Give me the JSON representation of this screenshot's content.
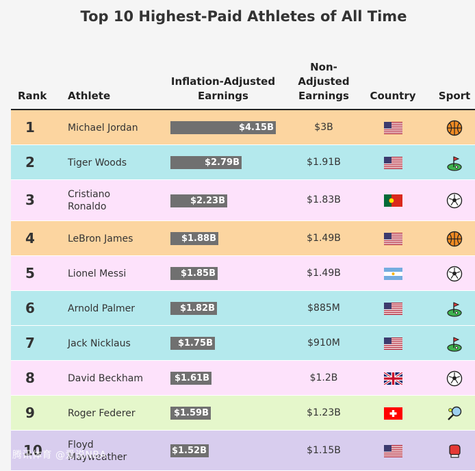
{
  "title": "Top 10 Highest-Paid Athletes of All Time",
  "headers": {
    "rank": "Rank",
    "athlete": "Athlete",
    "earnings_line1": "Inflation-Adjusted",
    "earnings_line2": "Earnings",
    "nonadj_line1": "Non-",
    "nonadj_line2": "Adjusted",
    "nonadj_line3": "Earnings",
    "country": "Country",
    "sport": "Sport"
  },
  "colors": {
    "basketball_row": "#fcd5a0",
    "golf_row": "#b4e9ed",
    "soccer_row": "#fde2fb",
    "tennis_row": "#e5f7cb",
    "boxing_row": "#d8cdee",
    "bar": "#707070"
  },
  "chart_data": {
    "type": "table",
    "unit": "$B",
    "x_max": 4.15,
    "rows": [
      {
        "rank": "1",
        "athlete": "Michael Jordan",
        "value": 4.15,
        "label": "$4.15B",
        "nonadj": "$3B",
        "country": "USA",
        "sport": "basketball"
      },
      {
        "rank": "2",
        "athlete": "Tiger Woods",
        "value": 2.79,
        "label": "$2.79B",
        "nonadj": "$1.91B",
        "country": "USA",
        "sport": "golf"
      },
      {
        "rank": "3",
        "athlete": "Cristiano Ronaldo",
        "value": 2.23,
        "label": "$2.23B",
        "nonadj": "$1.83B",
        "country": "Portugal",
        "sport": "soccer"
      },
      {
        "rank": "4",
        "athlete": "LeBron James",
        "value": 1.88,
        "label": "$1.88B",
        "nonadj": "$1.49B",
        "country": "USA",
        "sport": "basketball"
      },
      {
        "rank": "5",
        "athlete": "Lionel Messi",
        "value": 1.85,
        "label": "$1.85B",
        "nonadj": "$1.49B",
        "country": "Argentina",
        "sport": "soccer"
      },
      {
        "rank": "6",
        "athlete": "Arnold Palmer",
        "value": 1.82,
        "label": "$1.82B",
        "nonadj": "$885M",
        "country": "USA",
        "sport": "golf"
      },
      {
        "rank": "7",
        "athlete": "Jack Nicklaus",
        "value": 1.75,
        "label": "$1.75B",
        "nonadj": "$910M",
        "country": "USA",
        "sport": "golf"
      },
      {
        "rank": "8",
        "athlete": "David Beckham",
        "value": 1.61,
        "label": "$1.61B",
        "nonadj": "$1.2B",
        "country": "UK",
        "sport": "soccer"
      },
      {
        "rank": "9",
        "athlete": "Roger Federer",
        "value": 1.59,
        "label": "$1.59B",
        "nonadj": "$1.23B",
        "country": "Switzerland",
        "sport": "tennis"
      },
      {
        "rank": "10",
        "athlete": "Floyd Mayweather",
        "value": 1.52,
        "label": "$1.52B",
        "nonadj": "$1.15B",
        "country": "USA",
        "sport": "boxing"
      }
    ]
  },
  "watermark": "腾讯体育 @爱说NBA"
}
